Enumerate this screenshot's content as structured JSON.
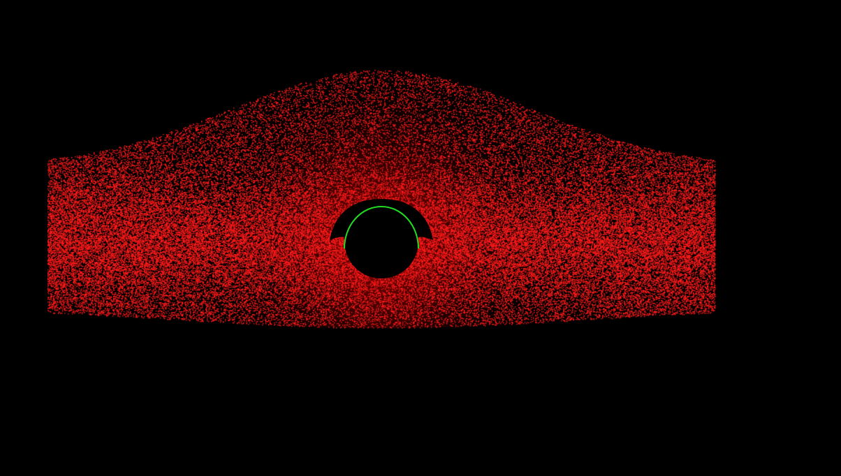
{
  "scene": {
    "kind": "black-hole-accretion-disk-render",
    "background_color": "#000000",
    "particle_color": "#ff1a1a",
    "particle_glow_color": "#ff0000",
    "photon_ring_color": "#22dd22",
    "event_horizon_color": "#000000"
  }
}
